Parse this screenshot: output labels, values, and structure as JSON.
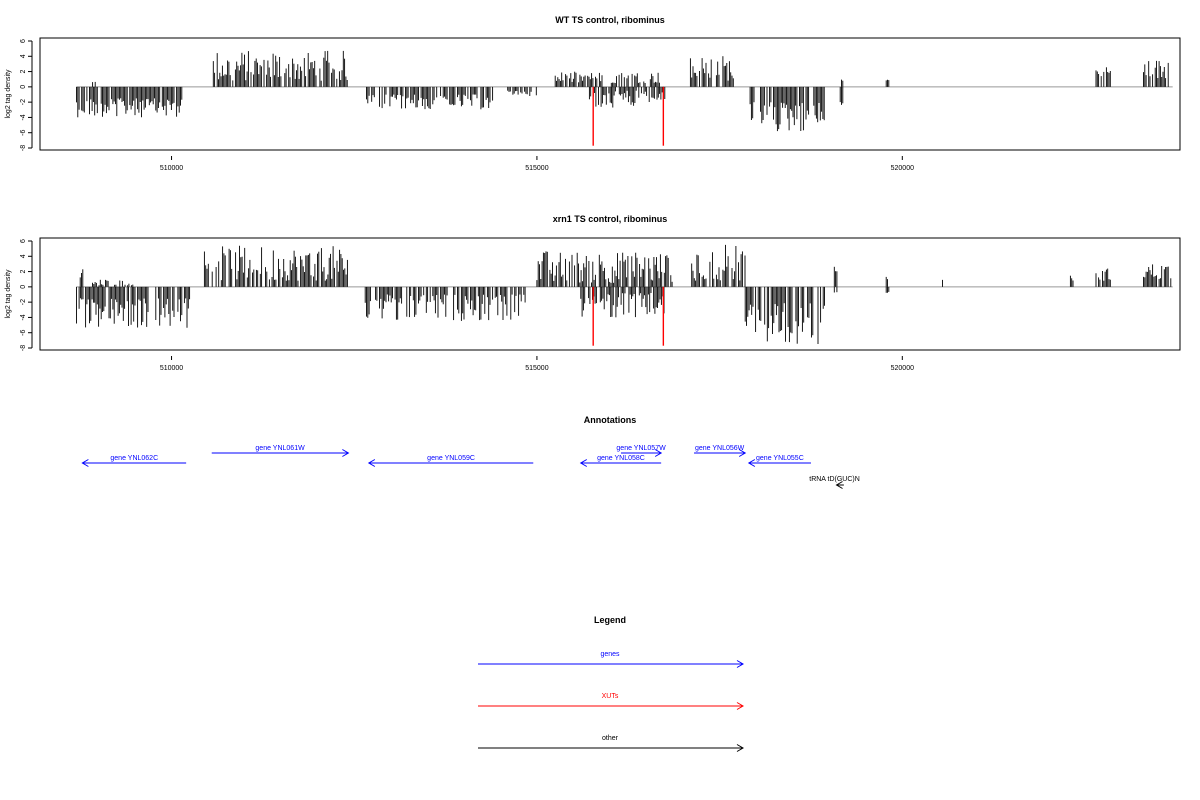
{
  "colors": {
    "genes": "#0000ff",
    "xuts": "#ff0000",
    "other": "#000000",
    "bars": "#000000",
    "baseline": "#999999"
  },
  "chart_data": [
    {
      "type": "bar",
      "title": "WT TS control, ribominus",
      "ylabel": "log2 tag density",
      "xlim": [
        508200,
        523800
      ],
      "ylim": [
        -8,
        6
      ],
      "xticks": [
        510000,
        515000,
        520000
      ],
      "xtick_labels": [
        "510000",
        "515000",
        "520000"
      ],
      "yticks": [
        -8,
        -6,
        -4,
        -2,
        0,
        2,
        4,
        6
      ],
      "ytick_labels": [
        "-8",
        "-6",
        "-4",
        "-2",
        "0",
        "2",
        "4",
        "6"
      ],
      "baseline_range": [
        508700,
        523700
      ],
      "segments": [
        {
          "start": 508700,
          "end": 510150,
          "direction": "minus",
          "min": 1.5,
          "max": 4.0
        },
        {
          "start": 508920,
          "end": 508960,
          "direction": "plus",
          "min": 0.5,
          "max": 1.0
        },
        {
          "start": 510500,
          "end": 512420,
          "direction": "plus",
          "min": 0.8,
          "max": 4.8
        },
        {
          "start": 512650,
          "end": 514400,
          "direction": "minus",
          "min": 1.0,
          "max": 3.0
        },
        {
          "start": 514600,
          "end": 515000,
          "direction": "minus",
          "min": 0.5,
          "max": 1.2
        },
        {
          "start": 515250,
          "end": 515900,
          "direction": "plus",
          "min": 0.5,
          "max": 2.0
        },
        {
          "start": 515700,
          "end": 516750,
          "direction": "minus",
          "min": 0.5,
          "max": 2.8
        },
        {
          "start": 516000,
          "end": 516700,
          "direction": "plus",
          "min": 0.5,
          "max": 2.0
        },
        {
          "start": 517100,
          "end": 517700,
          "direction": "plus",
          "min": 0.8,
          "max": 4.2
        },
        {
          "start": 517900,
          "end": 518950,
          "direction": "minus",
          "min": 2.0,
          "max": 6.0
        },
        {
          "start": 519150,
          "end": 519200,
          "direction": "plus",
          "min": 0.8,
          "max": 1.0
        },
        {
          "start": 519150,
          "end": 519200,
          "direction": "minus",
          "min": 2.0,
          "max": 2.4
        },
        {
          "start": 519780,
          "end": 519820,
          "direction": "plus",
          "min": 0.8,
          "max": 1.0
        },
        {
          "start": 522650,
          "end": 522850,
          "direction": "plus",
          "min": 0.8,
          "max": 3.2
        },
        {
          "start": 523300,
          "end": 523650,
          "direction": "plus",
          "min": 1.0,
          "max": 3.7
        }
      ],
      "highlights": [
        {
          "x": 515770,
          "value": -7.7
        },
        {
          "x": 516730,
          "value": -7.7
        }
      ]
    },
    {
      "type": "bar",
      "title": "xrn1 TS control, ribominus",
      "ylabel": "log2 tag density",
      "xlim": [
        508200,
        523800
      ],
      "ylim": [
        -8,
        6
      ],
      "xticks": [
        510000,
        515000,
        520000
      ],
      "xtick_labels": [
        "510000",
        "515000",
        "520000"
      ],
      "yticks": [
        -8,
        -6,
        -4,
        -2,
        0,
        2,
        4,
        6
      ],
      "ytick_labels": [
        "-8",
        "-6",
        "-4",
        "-2",
        "0",
        "2",
        "4",
        "6"
      ],
      "baseline_range": [
        508700,
        523700
      ],
      "segments": [
        {
          "start": 508700,
          "end": 510250,
          "direction": "minus",
          "min": 1.5,
          "max": 5.5
        },
        {
          "start": 508750,
          "end": 508800,
          "direction": "plus",
          "min": 1.0,
          "max": 2.4
        },
        {
          "start": 508900,
          "end": 509500,
          "direction": "plus",
          "min": 0.2,
          "max": 1.0
        },
        {
          "start": 510450,
          "end": 512420,
          "direction": "plus",
          "min": 0.8,
          "max": 5.4
        },
        {
          "start": 512650,
          "end": 514850,
          "direction": "minus",
          "min": 1.0,
          "max": 4.5
        },
        {
          "start": 515000,
          "end": 516850,
          "direction": "plus",
          "min": 0.5,
          "max": 4.8
        },
        {
          "start": 515600,
          "end": 516750,
          "direction": "minus",
          "min": 0.8,
          "max": 4.0
        },
        {
          "start": 517100,
          "end": 517850,
          "direction": "plus",
          "min": 0.8,
          "max": 5.6
        },
        {
          "start": 517850,
          "end": 518950,
          "direction": "minus",
          "min": 2.0,
          "max": 7.6
        },
        {
          "start": 519070,
          "end": 519110,
          "direction": "plus",
          "min": 2.0,
          "max": 2.7
        },
        {
          "start": 519070,
          "end": 519110,
          "direction": "minus",
          "min": 0.5,
          "max": 0.8
        },
        {
          "start": 519780,
          "end": 519820,
          "direction": "plus",
          "min": 1.0,
          "max": 1.5
        },
        {
          "start": 519780,
          "end": 519820,
          "direction": "minus",
          "min": 0.5,
          "max": 0.8
        },
        {
          "start": 520550,
          "end": 520580,
          "direction": "plus",
          "min": 0.8,
          "max": 1.0
        },
        {
          "start": 522300,
          "end": 522350,
          "direction": "plus",
          "min": 0.8,
          "max": 1.5
        },
        {
          "start": 522650,
          "end": 522850,
          "direction": "plus",
          "min": 0.8,
          "max": 2.5
        },
        {
          "start": 523300,
          "end": 523700,
          "direction": "plus",
          "min": 1.0,
          "max": 3.2
        }
      ],
      "highlights": [
        {
          "x": 515770,
          "value": -7.7
        },
        {
          "x": 516730,
          "value": -7.7
        }
      ]
    }
  ],
  "annotations": {
    "title": "Annotations",
    "features": [
      {
        "label": "gene YNL062C",
        "start": 508780,
        "end": 510200,
        "strand": "-",
        "category": "genes",
        "row": 2
      },
      {
        "label": "gene YNL061W",
        "start": 510550,
        "end": 512420,
        "strand": "+",
        "category": "genes",
        "row": 1
      },
      {
        "label": "gene YNL059C",
        "start": 512700,
        "end": 514950,
        "strand": "-",
        "category": "genes",
        "row": 2
      },
      {
        "label": "gene YNL057W",
        "start": 516150,
        "end": 516700,
        "strand": "+",
        "category": "genes",
        "row": 0
      },
      {
        "label": "gene YNL058C",
        "start": 515600,
        "end": 516700,
        "strand": "-",
        "category": "genes",
        "row": 2
      },
      {
        "label": "gene YNL056W",
        "start": 517150,
        "end": 517850,
        "strand": "+",
        "category": "genes",
        "row": 1
      },
      {
        "label": "gene YNL055C",
        "start": 517900,
        "end": 518750,
        "strand": "-",
        "category": "genes",
        "row": 2
      },
      {
        "label": "tRNA tD(GUC)N",
        "start": 519100,
        "end": 519200,
        "strand": "-",
        "category": "other",
        "row": 3
      }
    ]
  },
  "legend": {
    "title": "Legend",
    "items": [
      {
        "label": "genes",
        "category": "genes"
      },
      {
        "label": "XUTs",
        "category": "xuts"
      },
      {
        "label": "other",
        "category": "other"
      }
    ]
  }
}
